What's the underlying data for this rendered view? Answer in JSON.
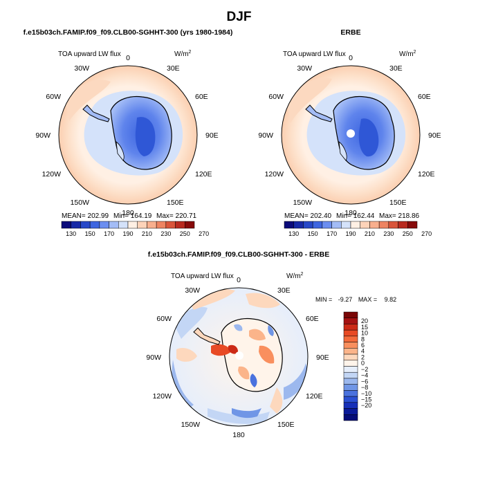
{
  "figure": {
    "title": "DJF"
  },
  "panels": [
    {
      "title": "f.e15b03ch.FAMIP.f09_f09.CLB00-SGHHT-300 (yrs 1980-1984)",
      "field": "TOA upward LW flux",
      "units": "W/m",
      "units_exp": "2",
      "lon_labels": [
        "0",
        "30E",
        "60E",
        "90E",
        "120E",
        "150E",
        "180",
        "150W",
        "120W",
        "90W",
        "60W",
        "30W"
      ],
      "stats": {
        "mean": "MEAN= 202.99",
        "min": "Min= 164.19",
        "max": "Max= 220.71"
      },
      "colorbar": {
        "colors": [
          "#0b0b7a",
          "#1729a6",
          "#2748c8",
          "#3e66e0",
          "#6b8ef0",
          "#a3bcf6",
          "#d4e2fa",
          "#fff0e4",
          "#fdd3b9",
          "#f8af8e",
          "#ee8462",
          "#d9553b",
          "#b82a1f",
          "#870b0b"
        ],
        "labels": [
          "130",
          "150",
          "170",
          "190",
          "210",
          "230",
          "250",
          "270"
        ]
      }
    },
    {
      "title": "ERBE",
      "field": "TOA upward LW flux",
      "units": "W/m",
      "units_exp": "2",
      "lon_labels": [
        "0",
        "30E",
        "60E",
        "90E",
        "120E",
        "150E",
        "180",
        "150W",
        "120W",
        "90W",
        "60W",
        "30W"
      ],
      "stats": {
        "mean": "MEAN= 202.40",
        "min": "Min= 162.44",
        "max": "Max= 218.86"
      },
      "colorbar": {
        "colors": [
          "#0b0b7a",
          "#1729a6",
          "#2748c8",
          "#3e66e0",
          "#6b8ef0",
          "#a3bcf6",
          "#d4e2fa",
          "#fff0e4",
          "#fdd3b9",
          "#f8af8e",
          "#ee8462",
          "#d9553b",
          "#b82a1f",
          "#870b0b"
        ],
        "labels": [
          "130",
          "150",
          "170",
          "190",
          "210",
          "230",
          "250",
          "270"
        ]
      }
    },
    {
      "title": "f.e15b03ch.FAMIP.f09_f09.CLB00-SGHHT-300 - ERBE",
      "field": "TOA upward LW flux",
      "units": "W/m",
      "units_exp": "2",
      "lon_labels": [
        "0",
        "30E",
        "60E",
        "90E",
        "120E",
        "150E",
        "180",
        "150W",
        "120W",
        "90W",
        "60W",
        "30W"
      ],
      "minmax": {
        "min_label": "MIN =",
        "min_value": "-9.27",
        "max_label": "MAX =",
        "max_value": "9.82"
      },
      "colorbar": {
        "colors": [
          "#7a0606",
          "#a51212",
          "#cc2a16",
          "#e84a24",
          "#f46b3b",
          "#f98f5e",
          "#fbb48a",
          "#fdd8bd",
          "#fff4ea",
          "#e6eefb",
          "#c3d6f5",
          "#9cb8ee",
          "#7096e6",
          "#4a72de",
          "#2b50d3",
          "#1730b8",
          "#0a1a99",
          "#050c78"
        ],
        "labels": [
          "20",
          "15",
          "10",
          "8",
          "6",
          "4",
          "2",
          "0",
          "−2",
          "−4",
          "−6",
          "−8",
          "−10",
          "−15",
          "−20"
        ]
      }
    }
  ]
}
